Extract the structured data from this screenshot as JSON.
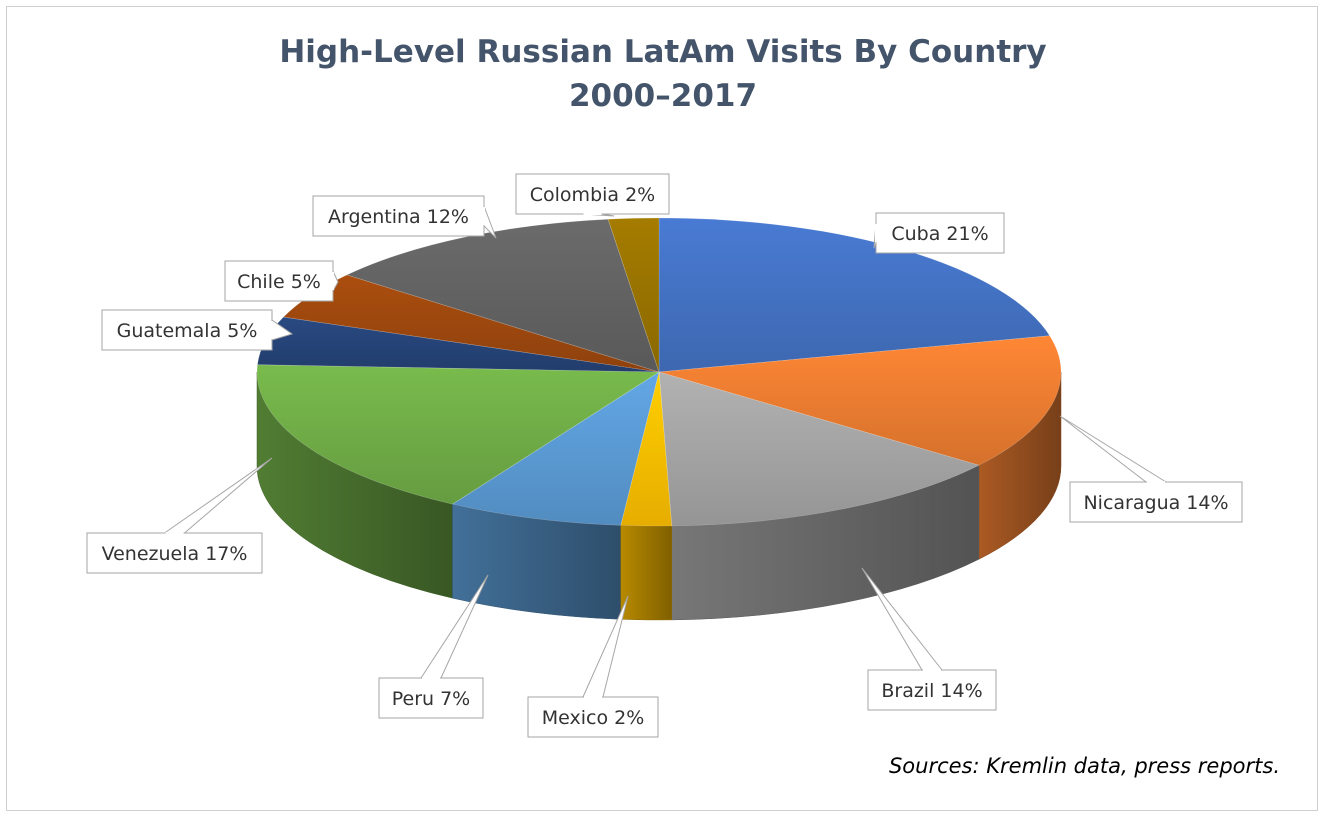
{
  "chart_data": {
    "type": "pie",
    "title": "High-Level Russian LatAm Visits By Country",
    "subtitle": "2000–2017",
    "source": "Sources: Kremlin data, press reports.",
    "slices": [
      {
        "label": "Cuba",
        "value": 21,
        "text": "Cuba 21%",
        "color": "#4472c4"
      },
      {
        "label": "Nicaragua",
        "value": 14,
        "text": "Nicaragua 14%",
        "color": "#ed7d31"
      },
      {
        "label": "Brazil",
        "value": 14,
        "text": "Brazil 14%",
        "color": "#a5a5a5"
      },
      {
        "label": "Mexico",
        "value": 2,
        "text": "Mexico 2%",
        "color": "#ffc000"
      },
      {
        "label": "Peru",
        "value": 7,
        "text": "Peru 7%",
        "color": "#5b9bd5"
      },
      {
        "label": "Venezuela",
        "value": 17,
        "text": "Venezuela 17%",
        "color": "#70ad47"
      },
      {
        "label": "Guatemala",
        "value": 5,
        "text": "Guatemala 5%",
        "color": "#264478"
      },
      {
        "label": "Chile",
        "value": 5,
        "text": "Chile 5%",
        "color": "#9e480e"
      },
      {
        "label": "Argentina",
        "value": 12,
        "text": "Argentina 12%",
        "color": "#636363"
      },
      {
        "label": "Colombia",
        "value": 2,
        "text": "Colombia 2%",
        "color": "#997300"
      }
    ]
  }
}
